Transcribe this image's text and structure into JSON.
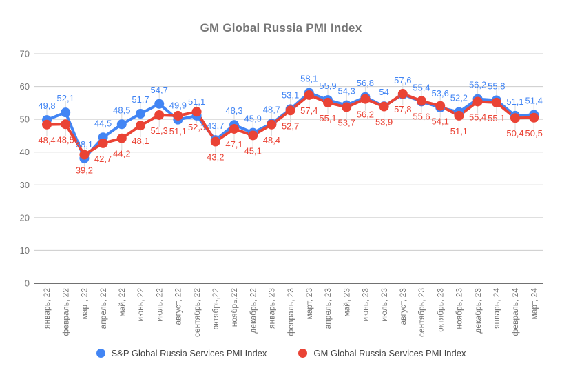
{
  "chart_data": {
    "type": "line",
    "title": "GM Global Russia PMI Index",
    "categories": [
      "январь, 22",
      "февраль, 22",
      "март, 22",
      "апрель, 22",
      "май, 22",
      "июнь, 22",
      "июль, 22",
      "август, 22",
      "сентябрь, 22",
      "октябрь,22",
      "ноябрь,22",
      "декабрь, 22",
      "январь, 23",
      "февраль, 23",
      "март, 23",
      "апрель, 23",
      "май, 23",
      "июнь, 23",
      "июль, 23",
      "август, 23",
      "сентябрь, 23",
      "октябрь, 23",
      "ноябрь, 23",
      "декабрь, 23",
      "январь, 24",
      "февраль, 24",
      "март, 24"
    ],
    "series": [
      {
        "name": "S&P Global Russia Services PMI Index",
        "color": "#4285f4",
        "values": [
          49.8,
          52.1,
          38.1,
          44.5,
          48.5,
          51.7,
          54.7,
          49.9,
          51.1,
          43.7,
          48.3,
          45.9,
          48.7,
          53.1,
          58.1,
          55.9,
          54.3,
          56.8,
          54,
          57.6,
          55.4,
          53.6,
          52.2,
          56.2,
          55.8,
          51.1,
          51.4
        ]
      },
      {
        "name": "GM Global Russia Services PMI Index",
        "color": "#ea4335",
        "values": [
          48.4,
          48.5,
          39.2,
          42.7,
          44.2,
          48.1,
          51.3,
          51.1,
          52.3,
          43.2,
          47.1,
          45.1,
          48.4,
          52.7,
          57.4,
          55.1,
          53.7,
          56.2,
          53.9,
          57.8,
          55.6,
          54.1,
          51.1,
          55.4,
          55.1,
          50.4,
          50.5
        ]
      }
    ],
    "ylim": [
      0,
      70
    ],
    "y_ticks": [
      0,
      10,
      20,
      30,
      40,
      50,
      60,
      70
    ],
    "grid": "horizontal",
    "legend_position": "bottom",
    "decimal_separator": ",",
    "colors": {
      "axis_text": "#757575",
      "gridline": "#cccccc",
      "baseline": "#424242",
      "annotation_stem": "#dadada",
      "title_text": "#757575",
      "legend_text": "#424242"
    }
  }
}
